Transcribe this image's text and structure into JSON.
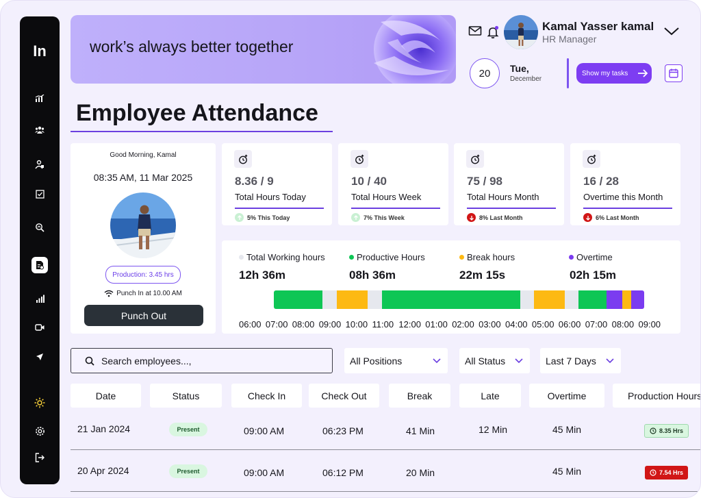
{
  "sidebar": {
    "logo": "In",
    "icons": [
      "dashboard-icon",
      "team-icon",
      "users-icon",
      "tasks-icon",
      "search-report-icon",
      "attendance-icon",
      "analytics-icon",
      "video-icon",
      "send-icon",
      "theme-sun-icon",
      "settings-icon",
      "logout-icon"
    ],
    "active": "attendance-icon"
  },
  "banner": {
    "text": "work’s always better together"
  },
  "profile": {
    "name": "Kamal Yasser kamal",
    "role": "HR Manager"
  },
  "date": {
    "day_number": "20",
    "day_name": "Tue,",
    "month": "December"
  },
  "tasks_button": {
    "label": "Show my tasks"
  },
  "page_title": "Employee Attendance",
  "punch": {
    "greeting": "Good Morning, Kamal",
    "datetime": "08:35 AM, 11 Mar 2025",
    "production": "Production: 3.45 hrs",
    "punch_in": "Punch In at 10.00 AM",
    "button": "Punch Out"
  },
  "stats": [
    {
      "value": "8.36 / 9",
      "label": "Total Hours Today",
      "trend": "5% This Today",
      "direction": "up"
    },
    {
      "value": "10 / 40",
      "label": "Total Hours Week",
      "trend": "7% This Week",
      "direction": "up"
    },
    {
      "value": "75 / 98",
      "label": "Total Hours Month",
      "trend": "8% Last Month",
      "direction": "down"
    },
    {
      "value": "16 / 28",
      "label": "Overtime this Month",
      "trend": "6% Last Month",
      "direction": "down"
    }
  ],
  "timeline": {
    "legend": [
      {
        "label": "Total Working hours",
        "value": "12h 36m",
        "color": "#e6e8ee"
      },
      {
        "label": "Productive Hours",
        "value": "08h 36m",
        "color": "#0ec655"
      },
      {
        "label": "Break hours",
        "value": "22m 15s",
        "color": "#fdb913"
      },
      {
        "label": "Overtime",
        "value": "02h 15m",
        "color": "#7b3cf0"
      }
    ],
    "segments": [
      {
        "type": "productive",
        "start": 0.0,
        "end": 0.131
      },
      {
        "type": "idle",
        "start": 0.131,
        "end": 0.17
      },
      {
        "type": "break",
        "start": 0.17,
        "end": 0.253
      },
      {
        "type": "idle",
        "start": 0.253,
        "end": 0.292
      },
      {
        "type": "productive",
        "start": 0.292,
        "end": 0.665
      },
      {
        "type": "idle",
        "start": 0.665,
        "end": 0.702
      },
      {
        "type": "break",
        "start": 0.702,
        "end": 0.786
      },
      {
        "type": "idle",
        "start": 0.786,
        "end": 0.823
      },
      {
        "type": "productive",
        "start": 0.823,
        "end": 0.898
      },
      {
        "type": "overtime",
        "start": 0.898,
        "end": 0.94
      },
      {
        "type": "break",
        "start": 0.94,
        "end": 0.965
      },
      {
        "type": "overtime",
        "start": 0.965,
        "end": 1.0
      }
    ],
    "times": [
      "06:00",
      "07:00",
      "08:00",
      "09:00",
      "10:00",
      "11:00",
      "12:00",
      "01:00",
      "02:00",
      "03:00",
      "04:00",
      "05:00",
      "06:00",
      "07:00",
      "08:00",
      "09:00"
    ]
  },
  "filters": {
    "search_placeholder": "Search employees...,",
    "position": "All Positions",
    "status": "All Status",
    "range": "Last 7 Days"
  },
  "table": {
    "headers": [
      "Date",
      "Status",
      "Check In",
      "Check Out",
      "Break",
      "Late",
      "Overtime",
      "Production Hours"
    ],
    "rows": [
      {
        "date": "21 Jan 2024",
        "status": "Present",
        "check_in": "09:00 AM",
        "check_out": "06:23 PM",
        "break": "41 Min",
        "late": "12 Min",
        "overtime": "45 Min",
        "production": "8.35 Hrs",
        "production_state": "good"
      },
      {
        "date": "20 Apr 2024",
        "status": "Present",
        "check_in": "09:00 AM",
        "check_out": "06:12 PM",
        "break": "20 Min",
        "late": "",
        "overtime": "45 Min",
        "production": "7.54 Hrs",
        "production_state": "bad"
      }
    ]
  }
}
